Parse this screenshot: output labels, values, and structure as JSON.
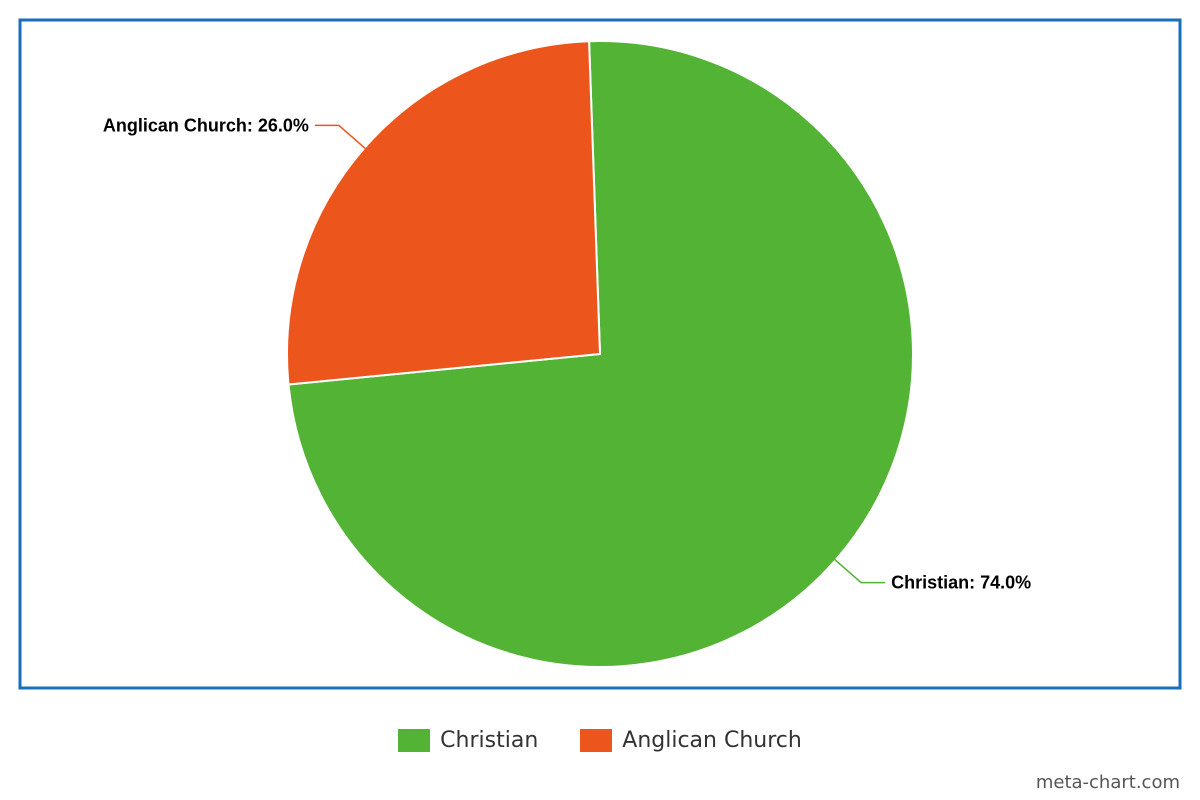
{
  "chart_data": {
    "type": "pie",
    "slices": [
      {
        "label": "Christian",
        "value": 74.0,
        "display": "Christian: 74.0%",
        "color": "#52b335"
      },
      {
        "label": "Anglican Church",
        "value": 26.0,
        "display": "Anglican Church: 26.0%",
        "color": "#ec561c"
      }
    ],
    "legend": {
      "placement": "bottom-center",
      "items": [
        "Christian",
        "Anglican Church"
      ]
    },
    "frame_color": "#1a6fba"
  },
  "watermark": "meta-chart.com"
}
